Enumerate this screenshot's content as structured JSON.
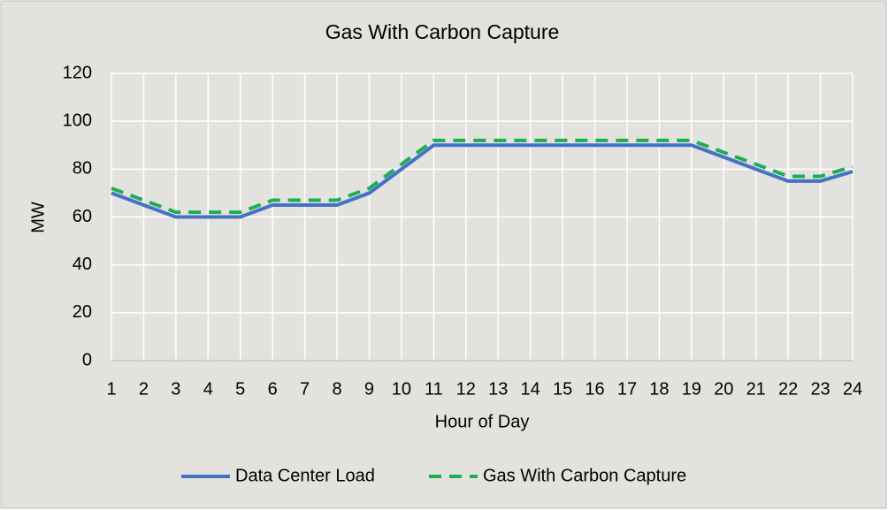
{
  "chart_data": {
    "type": "line",
    "title": "Gas With Carbon Capture",
    "x_label": "Hour of Day",
    "y_label": "MW",
    "x": [
      1,
      2,
      3,
      4,
      5,
      6,
      7,
      8,
      9,
      10,
      11,
      12,
      13,
      14,
      15,
      16,
      17,
      18,
      19,
      20,
      21,
      22,
      23,
      24
    ],
    "xlim": [
      1,
      24
    ],
    "xticks": [
      1,
      2,
      3,
      4,
      5,
      6,
      7,
      8,
      9,
      10,
      11,
      12,
      13,
      14,
      15,
      16,
      17,
      18,
      19,
      20,
      21,
      22,
      23,
      24
    ],
    "ylim": [
      0,
      120
    ],
    "yticks": [
      0,
      20,
      40,
      60,
      80,
      100,
      120
    ],
    "grid": true,
    "legend": "bottom",
    "series": [
      {
        "name": "Data Center Load",
        "color": "#4472c4",
        "dashed": false,
        "values": [
          70,
          65,
          60,
          60,
          60,
          65,
          65,
          65,
          70,
          80,
          90,
          90,
          90,
          90,
          90,
          90,
          90,
          90,
          90,
          85,
          80,
          75,
          75,
          79
        ]
      },
      {
        "name": "Gas With Carbon Capture",
        "color": "#1aaf54",
        "dashed": true,
        "values": [
          72,
          67,
          62,
          62,
          62,
          67,
          67,
          67,
          72,
          82,
          92,
          92,
          92,
          92,
          92,
          92,
          92,
          92,
          92,
          87,
          82,
          77,
          77,
          81
        ]
      }
    ]
  }
}
